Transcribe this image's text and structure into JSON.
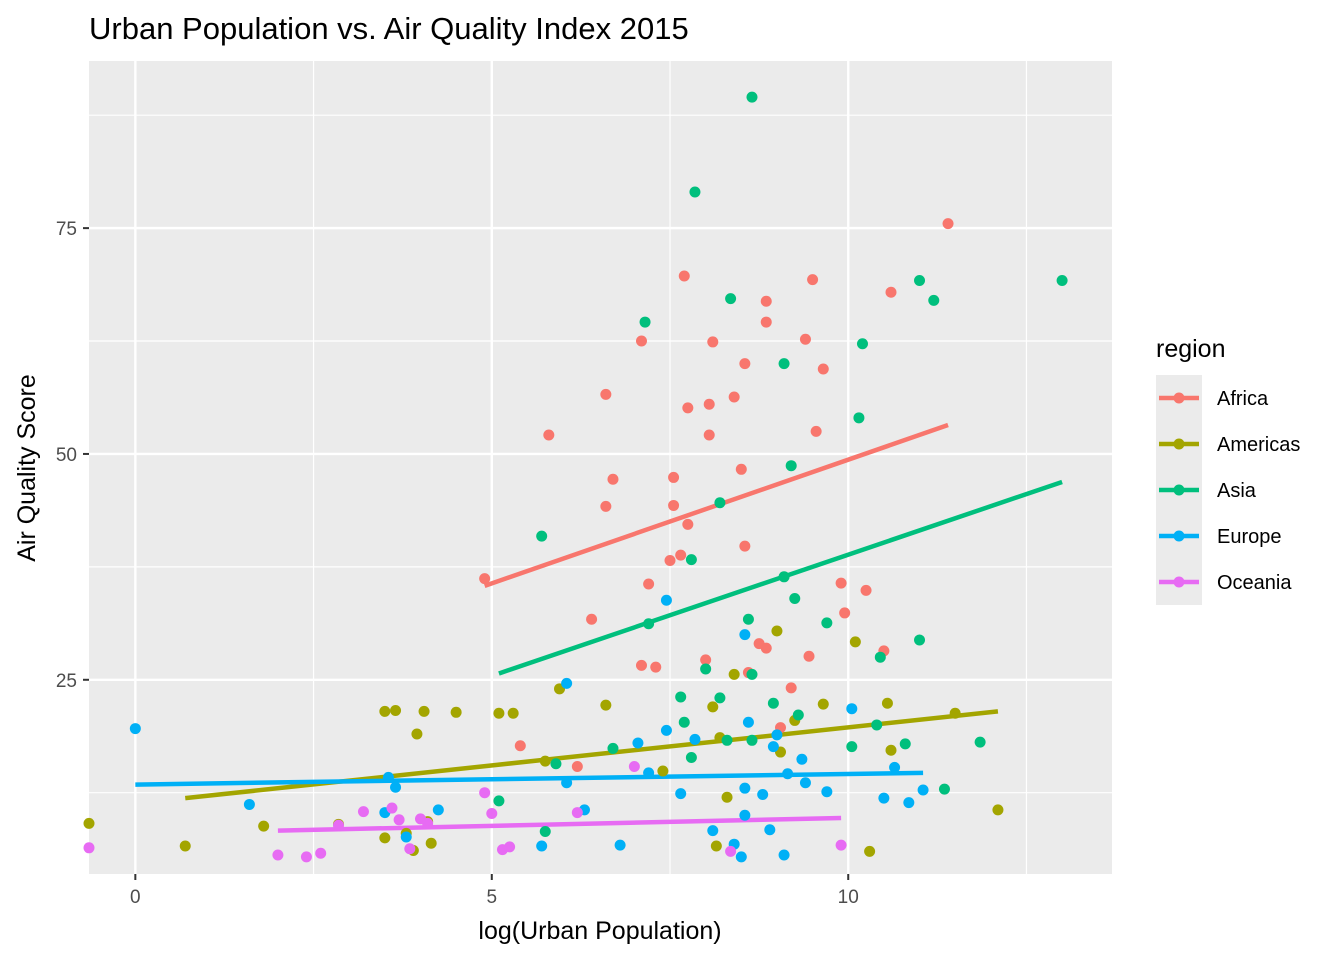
{
  "chart_data": {
    "type": "scatter",
    "title": "Urban Population vs. Air Quality Index 2015",
    "xlabel": "log(Urban Population)",
    "ylabel": "Air Quality Score",
    "xlim": [
      -0.65,
      13.7
    ],
    "ylim": [
      3.5,
      93.5
    ],
    "x_ticks": [
      0,
      5,
      10
    ],
    "x_tick_labels": [
      "0",
      "5",
      "10"
    ],
    "y_ticks": [
      25,
      50,
      75
    ],
    "y_tick_labels": [
      "25",
      "50",
      "75"
    ],
    "grid": true,
    "legend": {
      "title": "region",
      "placement": "right"
    },
    "series": [
      {
        "name": "Africa",
        "color": "#F8766D",
        "points": [
          [
            4.9,
            36.2
          ],
          [
            5.8,
            52.1
          ],
          [
            5.4,
            17.7
          ],
          [
            6.2,
            15.4
          ],
          [
            6.4,
            31.7
          ],
          [
            6.6,
            56.6
          ],
          [
            6.6,
            44.2
          ],
          [
            6.7,
            47.2
          ],
          [
            7.1,
            62.5
          ],
          [
            7.1,
            26.6
          ],
          [
            7.2,
            35.6
          ],
          [
            7.3,
            26.4
          ],
          [
            7.5,
            38.2
          ],
          [
            7.55,
            47.4
          ],
          [
            7.55,
            44.3
          ],
          [
            7.65,
            38.8
          ],
          [
            7.7,
            69.7
          ],
          [
            7.75,
            55.1
          ],
          [
            7.75,
            42.2
          ],
          [
            8.0,
            27.2
          ],
          [
            8.05,
            55.5
          ],
          [
            8.05,
            52.1
          ],
          [
            8.1,
            62.4
          ],
          [
            8.4,
            56.3
          ],
          [
            8.5,
            48.3
          ],
          [
            8.55,
            60.0
          ],
          [
            8.55,
            39.8
          ],
          [
            8.6,
            25.8
          ],
          [
            8.75,
            29.0
          ],
          [
            8.85,
            64.6
          ],
          [
            8.85,
            66.9
          ],
          [
            8.85,
            28.5
          ],
          [
            9.05,
            19.7
          ],
          [
            9.2,
            24.1
          ],
          [
            9.4,
            62.7
          ],
          [
            9.45,
            27.6
          ],
          [
            9.5,
            69.3
          ],
          [
            9.55,
            52.5
          ],
          [
            9.65,
            59.4
          ],
          [
            9.9,
            35.7
          ],
          [
            9.95,
            32.4
          ],
          [
            10.25,
            34.9
          ],
          [
            10.5,
            28.2
          ],
          [
            10.6,
            67.9
          ],
          [
            11.4,
            75.5
          ]
        ],
        "trend": [
          [
            4.9,
            35.4
          ],
          [
            11.4,
            53.2
          ]
        ]
      },
      {
        "name": "Americas",
        "color": "#A3A500",
        "points": [
          [
            -0.65,
            9.1
          ],
          [
            0.7,
            6.6
          ],
          [
            1.8,
            8.8
          ],
          [
            2.85,
            9.0
          ],
          [
            3.5,
            21.5
          ],
          [
            3.5,
            7.5
          ],
          [
            3.65,
            21.6
          ],
          [
            3.8,
            8.0
          ],
          [
            3.9,
            6.1
          ],
          [
            3.95,
            19.0
          ],
          [
            4.05,
            21.5
          ],
          [
            4.1,
            9.3
          ],
          [
            4.15,
            6.9
          ],
          [
            4.5,
            21.4
          ],
          [
            5.1,
            21.3
          ],
          [
            5.3,
            21.3
          ],
          [
            5.75,
            16.0
          ],
          [
            5.95,
            24.0
          ],
          [
            6.6,
            22.2
          ],
          [
            7.4,
            14.9
          ],
          [
            8.1,
            22.0
          ],
          [
            8.15,
            6.6
          ],
          [
            8.2,
            18.6
          ],
          [
            8.3,
            12.0
          ],
          [
            8.4,
            25.6
          ],
          [
            9.0,
            30.4
          ],
          [
            9.05,
            17.0
          ],
          [
            9.25,
            20.5
          ],
          [
            9.65,
            22.3
          ],
          [
            10.1,
            29.2
          ],
          [
            10.3,
            6.0
          ],
          [
            10.55,
            22.4
          ],
          [
            10.6,
            17.2
          ],
          [
            11.5,
            21.3
          ],
          [
            12.1,
            10.6
          ]
        ],
        "trend": [
          [
            0.7,
            11.9
          ],
          [
            12.1,
            21.5
          ]
        ]
      },
      {
        "name": "Asia",
        "color": "#00BF7D",
        "points": [
          [
            5.1,
            11.6
          ],
          [
            5.7,
            40.9
          ],
          [
            5.75,
            8.2
          ],
          [
            5.9,
            15.7
          ],
          [
            6.7,
            17.4
          ],
          [
            7.15,
            64.6
          ],
          [
            7.2,
            31.2
          ],
          [
            7.65,
            23.1
          ],
          [
            7.7,
            20.3
          ],
          [
            7.8,
            38.3
          ],
          [
            7.8,
            16.4
          ],
          [
            7.85,
            79.0
          ],
          [
            8.0,
            26.2
          ],
          [
            8.2,
            44.6
          ],
          [
            8.2,
            23.0
          ],
          [
            8.3,
            18.3
          ],
          [
            8.35,
            67.2
          ],
          [
            8.6,
            31.7
          ],
          [
            8.65,
            25.6
          ],
          [
            8.65,
            18.3
          ],
          [
            8.65,
            89.5
          ],
          [
            8.95,
            22.4
          ],
          [
            9.1,
            60.0
          ],
          [
            9.1,
            36.4
          ],
          [
            9.2,
            48.7
          ],
          [
            9.25,
            34.0
          ],
          [
            9.3,
            21.1
          ],
          [
            9.7,
            31.3
          ],
          [
            10.05,
            17.6
          ],
          [
            10.15,
            54.0
          ],
          [
            10.2,
            62.2
          ],
          [
            10.4,
            20.0
          ],
          [
            10.45,
            27.5
          ],
          [
            10.8,
            17.9
          ],
          [
            11.0,
            69.2
          ],
          [
            11.0,
            29.4
          ],
          [
            11.2,
            67.0
          ],
          [
            11.35,
            12.9
          ],
          [
            11.85,
            18.1
          ],
          [
            13.0,
            69.2
          ]
        ],
        "trend": [
          [
            5.1,
            25.7
          ],
          [
            13.0,
            46.9
          ]
        ]
      },
      {
        "name": "Europe",
        "color": "#00B0F6",
        "points": [
          [
            0.0,
            19.6
          ],
          [
            1.6,
            11.2
          ],
          [
            3.5,
            10.3
          ],
          [
            3.55,
            14.2
          ],
          [
            3.65,
            13.1
          ],
          [
            3.8,
            7.6
          ],
          [
            4.25,
            10.6
          ],
          [
            5.7,
            6.6
          ],
          [
            6.05,
            13.6
          ],
          [
            6.05,
            24.6
          ],
          [
            6.3,
            10.6
          ],
          [
            6.8,
            6.7
          ],
          [
            7.05,
            18.0
          ],
          [
            7.2,
            14.7
          ],
          [
            7.45,
            19.4
          ],
          [
            7.45,
            33.8
          ],
          [
            7.65,
            12.4
          ],
          [
            7.85,
            18.4
          ],
          [
            8.1,
            8.3
          ],
          [
            8.4,
            6.8
          ],
          [
            8.5,
            5.4
          ],
          [
            8.55,
            10.0
          ],
          [
            8.55,
            13.0
          ],
          [
            8.55,
            30.0
          ],
          [
            8.6,
            20.3
          ],
          [
            8.8,
            12.3
          ],
          [
            8.9,
            8.4
          ],
          [
            8.95,
            17.6
          ],
          [
            9.0,
            18.9
          ],
          [
            9.1,
            5.6
          ],
          [
            9.15,
            14.6
          ],
          [
            9.35,
            16.2
          ],
          [
            9.4,
            13.6
          ],
          [
            9.7,
            12.6
          ],
          [
            10.05,
            21.8
          ],
          [
            10.5,
            11.9
          ],
          [
            10.65,
            15.3
          ],
          [
            10.85,
            11.4
          ],
          [
            11.05,
            12.8
          ]
        ],
        "trend": [
          [
            0.0,
            13.4
          ],
          [
            11.05,
            14.7
          ]
        ]
      },
      {
        "name": "Oceania",
        "color": "#E76BF3",
        "points": [
          [
            -0.65,
            6.4
          ],
          [
            2.0,
            5.6
          ],
          [
            2.4,
            5.4
          ],
          [
            2.6,
            5.8
          ],
          [
            2.85,
            8.9
          ],
          [
            3.2,
            10.4
          ],
          [
            3.6,
            10.8
          ],
          [
            3.7,
            9.5
          ],
          [
            3.85,
            6.3
          ],
          [
            4.0,
            9.6
          ],
          [
            4.1,
            9.1
          ],
          [
            4.9,
            12.5
          ],
          [
            5.0,
            10.2
          ],
          [
            5.15,
            6.2
          ],
          [
            5.25,
            6.5
          ],
          [
            6.2,
            10.3
          ],
          [
            7.0,
            15.4
          ],
          [
            8.35,
            6.0
          ],
          [
            9.9,
            6.7
          ]
        ],
        "trend": [
          [
            2.0,
            8.3
          ],
          [
            9.9,
            9.7
          ]
        ]
      }
    ]
  }
}
